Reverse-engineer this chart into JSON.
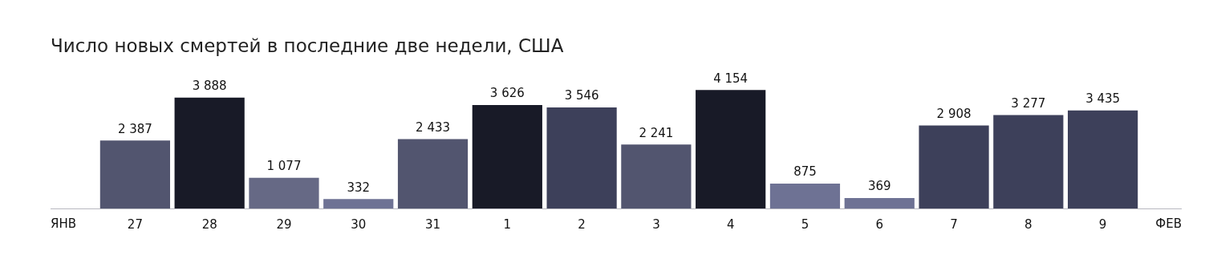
{
  "chart_data": {
    "type": "bar",
    "title": "Число новых смертей в последние две недели, США",
    "categories": [
      "27",
      "28",
      "29",
      "30",
      "31",
      "1",
      "2",
      "3",
      "4",
      "5",
      "6",
      "7",
      "8",
      "9"
    ],
    "values": [
      2387,
      3888,
      1077,
      332,
      2433,
      3626,
      3546,
      2241,
      4154,
      875,
      369,
      2908,
      3277,
      3435
    ],
    "colors": [
      "#52556f",
      "#181a27",
      "#666985",
      "#6e7294",
      "#52556f",
      "#181a27",
      "#3d405a",
      "#52556f",
      "#181a27",
      "#6e7294",
      "#6e7294",
      "#3d405a",
      "#3d405a",
      "#3d405a"
    ],
    "data_labels": true,
    "grid": false,
    "legend": false,
    "annotations": [
      "ЯНВ",
      "ФЕВ"
    ]
  }
}
